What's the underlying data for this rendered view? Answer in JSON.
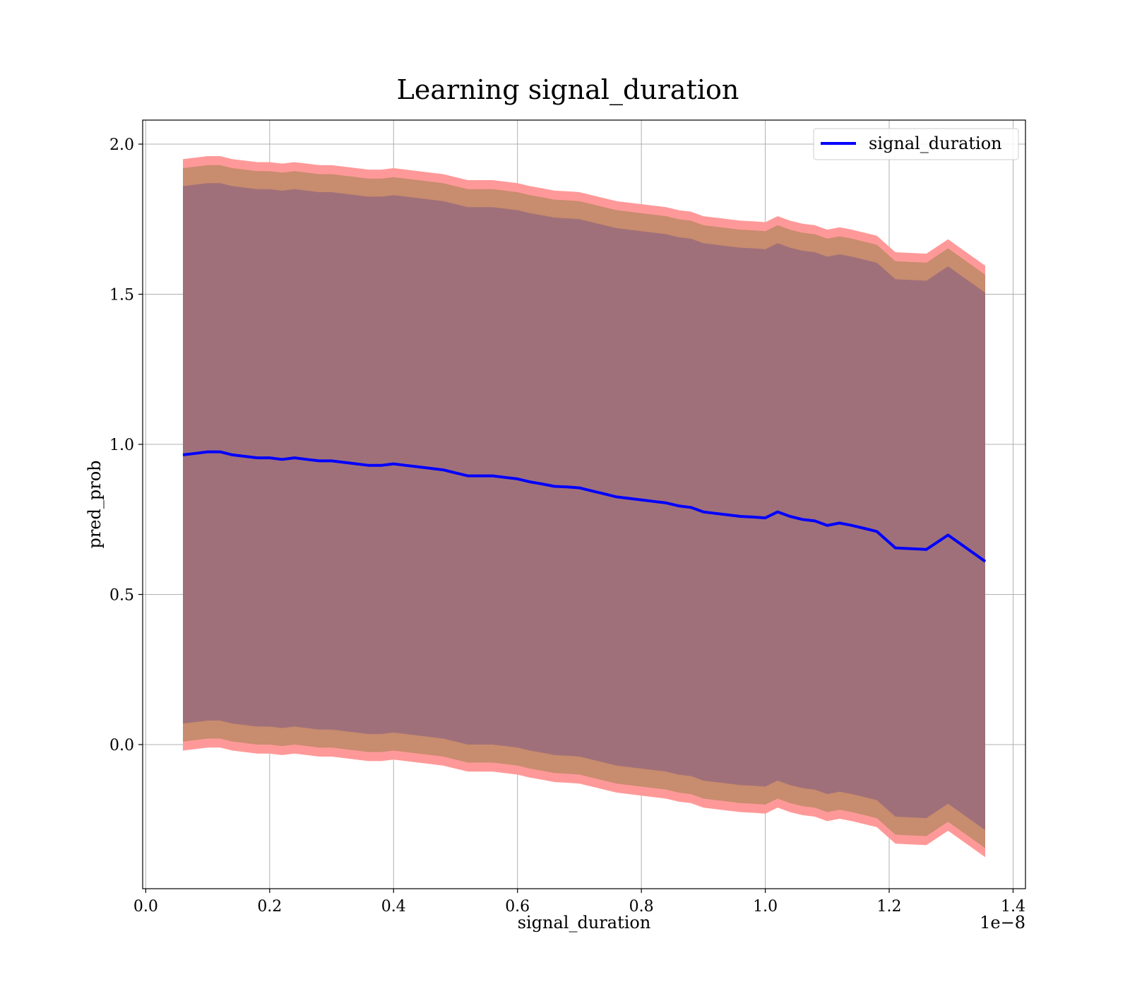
{
  "chart_data": {
    "type": "line",
    "title": "Learning signal_duration",
    "xlabel": "signal_duration",
    "ylabel": "pred_prob",
    "x_offset_label": "1e−8",
    "x_tick_labels": [
      "0.0",
      "0.2",
      "0.4",
      "0.6",
      "0.8",
      "1.0",
      "1.2",
      "1.4"
    ],
    "y_tick_labels": [
      "0.0",
      "0.5",
      "1.0",
      "1.5",
      "2.0"
    ],
    "xlim": [
      -0.005,
      1.42
    ],
    "ylim": [
      -0.48,
      2.08
    ],
    "grid": true,
    "legend_position": "top-right",
    "series": [
      {
        "name": "signal_duration",
        "color": "#0000ff",
        "x": [
          0.06,
          0.08,
          0.1,
          0.12,
          0.14,
          0.16,
          0.18,
          0.2,
          0.22,
          0.24,
          0.26,
          0.28,
          0.3,
          0.32,
          0.34,
          0.36,
          0.38,
          0.4,
          0.42,
          0.44,
          0.46,
          0.48,
          0.5,
          0.52,
          0.54,
          0.56,
          0.58,
          0.6,
          0.62,
          0.64,
          0.66,
          0.68,
          0.7,
          0.72,
          0.74,
          0.76,
          0.78,
          0.8,
          0.82,
          0.84,
          0.86,
          0.88,
          0.9,
          0.92,
          0.94,
          0.96,
          0.98,
          1.0,
          1.02,
          1.04,
          1.06,
          1.08,
          1.1,
          1.12,
          1.14,
          1.16,
          1.18,
          1.21,
          1.26,
          1.295,
          1.355
        ],
        "y": [
          0.965,
          0.97,
          0.975,
          0.975,
          0.965,
          0.96,
          0.955,
          0.955,
          0.95,
          0.955,
          0.95,
          0.945,
          0.945,
          0.94,
          0.935,
          0.93,
          0.93,
          0.935,
          0.93,
          0.925,
          0.92,
          0.915,
          0.905,
          0.895,
          0.895,
          0.895,
          0.89,
          0.885,
          0.875,
          0.868,
          0.86,
          0.858,
          0.855,
          0.845,
          0.835,
          0.825,
          0.82,
          0.815,
          0.81,
          0.805,
          0.795,
          0.79,
          0.775,
          0.77,
          0.765,
          0.76,
          0.758,
          0.755,
          0.775,
          0.76,
          0.75,
          0.745,
          0.73,
          0.738,
          0.73,
          0.72,
          0.71,
          0.655,
          0.65,
          0.698,
          0.61
        ]
      }
    ],
    "bands": [
      {
        "color": "#ff9999",
        "lower_offset": -0.985,
        "upper_offset": 0.985
      },
      {
        "color": "#c88c6e",
        "lower_offset": -0.955,
        "upper_offset": 0.955
      },
      {
        "color": "#a0707a",
        "lower_offset": -0.895,
        "upper_offset": 0.895
      }
    ]
  }
}
